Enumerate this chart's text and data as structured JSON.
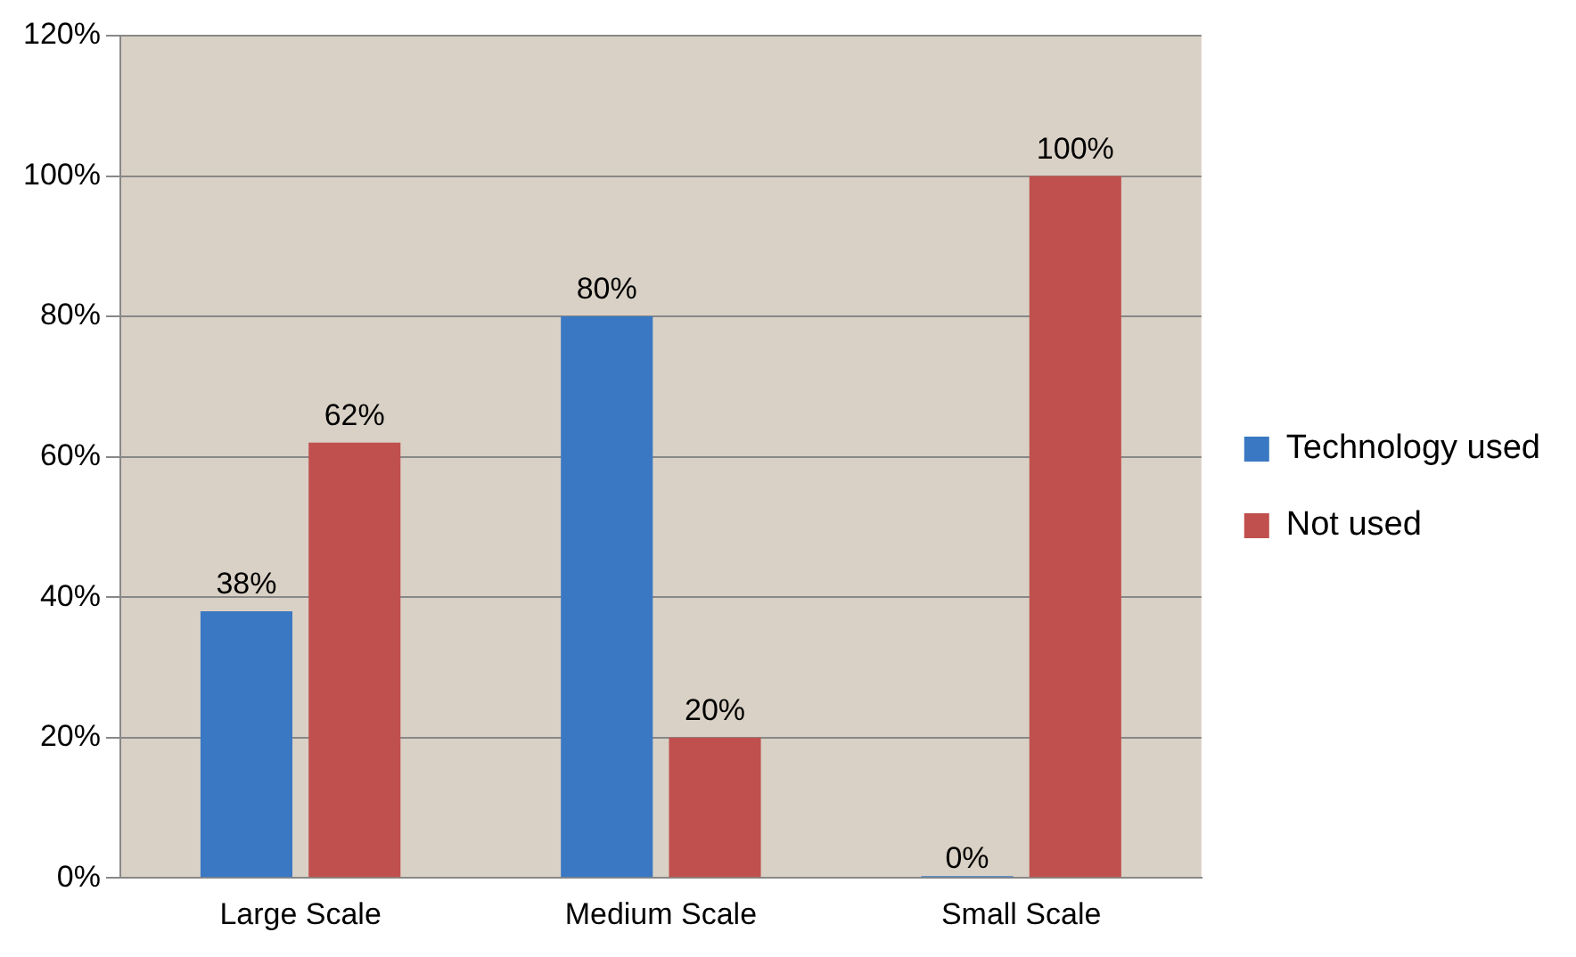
{
  "chart_data": {
    "type": "bar",
    "categories": [
      "Large Scale",
      "Medium Scale",
      "Small Scale"
    ],
    "series": [
      {
        "name": "Technology used",
        "color": "#3a78c3",
        "values": [
          38,
          80,
          0
        ],
        "value_labels": [
          "38%",
          "80%",
          "0%"
        ]
      },
      {
        "name": "Not used",
        "color": "#c0504d",
        "values": [
          62,
          20,
          100
        ],
        "value_labels": [
          "62%",
          "20%",
          "100%"
        ]
      }
    ],
    "ylim": [
      0,
      120
    ],
    "yticks": [
      {
        "value": 0,
        "label": "0%"
      },
      {
        "value": 20,
        "label": "20%"
      },
      {
        "value": 40,
        "label": "40%"
      },
      {
        "value": 60,
        "label": "60%"
      },
      {
        "value": 80,
        "label": "80%"
      },
      {
        "value": 100,
        "label": "100%"
      },
      {
        "value": 120,
        "label": "120%"
      }
    ],
    "grid": "y",
    "legend": "right"
  }
}
